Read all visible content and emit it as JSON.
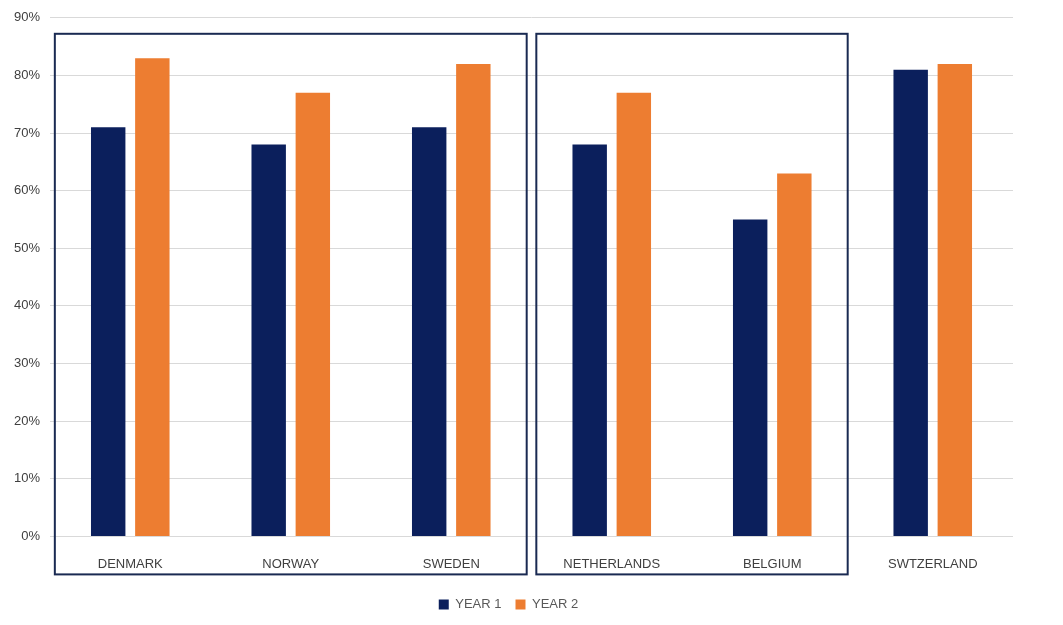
{
  "chart_data": {
    "type": "bar",
    "categories": [
      "DENMARK",
      "NORWAY",
      "SWEDEN",
      "NETHERLANDS",
      "BELGIUM",
      "SWTZERLAND"
    ],
    "series": [
      {
        "name": "YEAR 1",
        "color": "#0b1f5c",
        "values": [
          71,
          68,
          71,
          68,
          55,
          81
        ]
      },
      {
        "name": "YEAR 2",
        "color": "#ed7d31",
        "values": [
          83,
          77,
          82,
          77,
          63,
          82
        ]
      }
    ],
    "ylim": [
      0,
      90
    ],
    "yticks": [
      {
        "value": 0,
        "label": "0%"
      },
      {
        "value": 10,
        "label": "10%"
      },
      {
        "value": 20,
        "label": "20%"
      },
      {
        "value": 30,
        "label": "30%"
      },
      {
        "value": 40,
        "label": "40%"
      },
      {
        "value": 50,
        "label": "50%"
      },
      {
        "value": 60,
        "label": "60%"
      },
      {
        "value": 70,
        "label": "70%"
      },
      {
        "value": 80,
        "label": "80%"
      },
      {
        "value": 90,
        "label": "90%"
      }
    ],
    "grid": true,
    "legend": "bottom"
  }
}
